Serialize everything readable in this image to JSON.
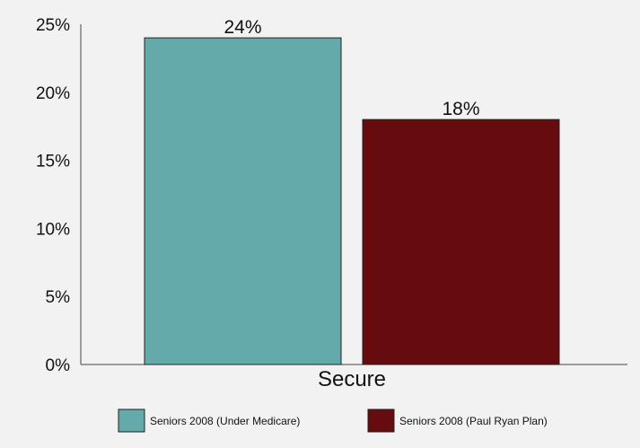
{
  "chart_data": {
    "type": "bar",
    "title": "",
    "xlabel": "",
    "ylabel": "",
    "categories": [
      "Secure"
    ],
    "series": [
      {
        "name": "Seniors 2008 (Under Medicare)",
        "values": [
          24
        ],
        "label": "24%",
        "color": "#64aaaa"
      },
      {
        "name": "Seniors 2008 (Paul Ryan Plan)",
        "values": [
          18
        ],
        "label": "18%",
        "color": "#660b0e"
      }
    ],
    "ylim": [
      0,
      25
    ],
    "yticks": [
      "0%",
      "5%",
      "10%",
      "15%",
      "20%",
      "25%"
    ],
    "grid": false,
    "legend_position": "bottom"
  }
}
